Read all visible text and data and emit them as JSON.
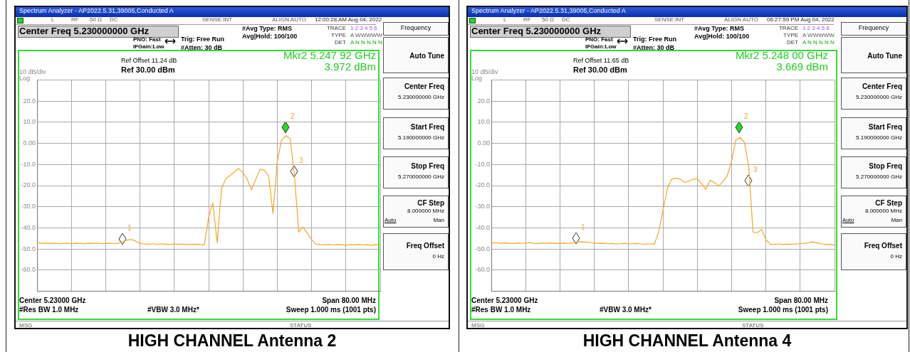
{
  "chart_data": [
    {
      "type": "line",
      "title": "HIGH CHANNEL Antenna 2",
      "ylim": [
        -70,
        30
      ],
      "grid": true,
      "tick_labels": "y",
      "marker": "none",
      "categories": [
        null,
        null,
        null,
        null,
        null,
        null,
        null,
        null,
        null,
        null,
        null,
        null,
        null,
        null,
        null,
        null,
        null,
        null,
        null,
        null,
        null,
        null,
        null,
        null,
        null,
        null,
        null,
        null,
        null,
        null,
        null,
        null,
        null,
        null,
        null,
        null,
        null,
        null,
        null,
        null,
        null,
        null,
        null,
        null,
        null,
        null,
        null,
        null,
        null,
        null,
        null,
        null,
        null,
        null,
        null,
        null,
        null,
        null,
        null,
        null,
        null,
        null,
        null,
        null,
        null,
        null,
        null,
        null,
        null,
        null,
        null,
        null,
        null,
        null,
        null,
        null,
        null,
        null,
        null,
        null,
        null
      ],
      "yticks": [
        {
          "value": 30,
          "label": null
        },
        {
          "value": 20,
          "label": "20.0"
        },
        {
          "value": 10,
          "label": "10.0"
        },
        {
          "value": 0,
          "label": "0.00"
        },
        {
          "value": -10,
          "label": "-10.0"
        },
        {
          "value": -20,
          "label": "-20.0"
        },
        {
          "value": -30,
          "label": "-30.0"
        },
        {
          "value": -40,
          "label": "-40.0"
        },
        {
          "value": -50,
          "label": "-50.0"
        },
        {
          "value": -60,
          "label": "-60.0"
        },
        {
          "value": -70,
          "label": null
        }
      ],
      "series": [
        {
          "color": "#f5a623",
          "values": [
            -47.1,
            -47.3,
            -47.2,
            -47.4,
            -47.3,
            -47.5,
            -47.4,
            -47.2,
            -47.5,
            -47.3,
            -47.4,
            -47.6,
            -47.3,
            -47.4,
            -47.2,
            -47.5,
            -47.4,
            -47.3,
            -47.5,
            -47.3,
            -46.5,
            -45.8,
            -45.5,
            -46.3,
            -47.3,
            -47.6,
            -47.7,
            -47.5,
            -47.8,
            -47.6,
            -47.7,
            -47.9,
            -47.6,
            -47.8,
            -47.7,
            -48.0,
            -47.8,
            -47.7,
            -47.9,
            -48.0,
            -35.0,
            -28.3,
            -47.1,
            -21.4,
            -16.8,
            -15.2,
            -13.5,
            -11.9,
            -13.8,
            -17.0,
            -21.9,
            -17.0,
            -12.3,
            -12.8,
            -15.5,
            -33.2,
            -8.5,
            1.5,
            3.6,
            2.3,
            -15.0,
            -42.0,
            -39.6,
            -42.5,
            -45.5,
            -47.7,
            -47.9,
            -48.0,
            -47.8,
            -48.1,
            -47.9,
            -48.0,
            -48.2,
            -47.9,
            -48.0,
            -47.8,
            -48.1,
            -48.0,
            -48.2,
            -47.9,
            -48.2
          ]
        }
      ],
      "annotations": [
        "Spectrum Analyzer - AP2022.5.31,39005,Conducted A",
        "L",
        "RF",
        "50 Ω",
        "DC",
        "SENSE:INT",
        "ALIGN AUTO",
        "12:00:28 AM Aug 04, 2022",
        "Center Freq 5.230000000 GHz",
        "PNO: Fast",
        "IFGain:Low",
        "Trig: Free Run",
        "#Atten: 30 dB",
        "#Avg Type: RMS",
        "Avg|Hold: 100/100",
        "TRACE",
        "1 2 3 4 5 6",
        "TYPE",
        "A WWWWW",
        "DET",
        "A N N N N N",
        "Ref Offset 11.24 dB",
        "Ref 30.00 dBm",
        "10 dB/div",
        "Log",
        "Mkr2 5.247 92 GHz",
        "3.972 dBm",
        "Center 5.23000 GHz",
        "Span 80.00 MHz",
        "#Res BW 1.0 MHz",
        "#VBW 3.0 MHz*",
        "Sweep  1.000 ms (1001 pts)",
        "MSG",
        "STATUS",
        "Frequency",
        "Auto Tune",
        "Center Freq",
        "5.230000000 GHz",
        "Start Freq",
        "5.190000000 GHz",
        "Stop Freq",
        "5.270000000 GHz",
        "CF Step",
        "8.000000 MHz",
        "Auto",
        "Man",
        "Freq Offset",
        "0 Hz",
        "1",
        "2",
        "3"
      ]
    },
    {
      "type": "line",
      "title": "HIGH CHANNEL Antenna 4",
      "ylim": [
        -70,
        30
      ],
      "grid": true,
      "tick_labels": "y",
      "marker": "none",
      "categories": [
        null,
        null,
        null,
        null,
        null,
        null,
        null,
        null,
        null,
        null,
        null,
        null,
        null,
        null,
        null,
        null,
        null,
        null,
        null,
        null,
        null,
        null,
        null,
        null,
        null,
        null,
        null,
        null,
        null,
        null,
        null,
        null,
        null,
        null,
        null,
        null,
        null,
        null,
        null,
        null,
        null,
        null,
        null,
        null,
        null,
        null,
        null,
        null,
        null,
        null,
        null,
        null,
        null,
        null,
        null,
        null,
        null,
        null,
        null,
        null,
        null,
        null,
        null,
        null,
        null,
        null,
        null,
        null,
        null,
        null,
        null,
        null,
        null,
        null,
        null,
        null,
        null,
        null,
        null,
        null,
        null
      ],
      "yticks": [
        {
          "value": 30,
          "label": null
        },
        {
          "value": 20,
          "label": "20.0"
        },
        {
          "value": 10,
          "label": "10.0"
        },
        {
          "value": 0,
          "label": "0.00"
        },
        {
          "value": -10,
          "label": "-10.0"
        },
        {
          "value": -20,
          "label": "-20.0"
        },
        {
          "value": -30,
          "label": "-30.0"
        },
        {
          "value": -40,
          "label": "-40.0"
        },
        {
          "value": -50,
          "label": "-50.0"
        },
        {
          "value": -60,
          "label": "-60.0"
        },
        {
          "value": -70,
          "label": null
        }
      ],
      "series": [
        {
          "color": "#f5a623",
          "values": [
            -47.2,
            -47.0,
            -47.3,
            -47.1,
            -47.2,
            -47.4,
            -47.1,
            -47.3,
            -47.2,
            -47.0,
            -47.3,
            -47.4,
            -47.2,
            -47.3,
            -47.1,
            -47.4,
            -47.3,
            -47.2,
            -47.4,
            -47.1,
            -46.8,
            -46.6,
            -46.7,
            -47.0,
            -47.2,
            -47.4,
            -47.3,
            -47.5,
            -47.4,
            -47.6,
            -47.5,
            -47.3,
            -47.6,
            -47.5,
            -47.4,
            -47.6,
            -47.7,
            -47.5,
            -47.7,
            -42.0,
            -32.0,
            -21.5,
            -17.0,
            -16.5,
            -16.9,
            -18.5,
            -18.0,
            -17.0,
            -16.8,
            -19.0,
            -21.8,
            -17.5,
            -18.5,
            -20.2,
            -18.0,
            -15.3,
            -8.5,
            1.5,
            2.8,
            0.5,
            -11.0,
            -42.0,
            -42.3,
            -40.7,
            -45.5,
            -47.7,
            -47.8,
            -47.6,
            -47.9,
            -47.7,
            -47.8,
            -47.6,
            -47.5,
            -47.3,
            -47.0,
            -46.6,
            -47.2,
            -47.6,
            -47.8,
            -47.7,
            -48.2
          ]
        }
      ],
      "annotations": [
        "Spectrum Analyzer - AP2022.5.31,39005,Conducted A",
        "L",
        "RF",
        "50 Ω",
        "DC",
        "SENSE:INT",
        "ALIGN AUTO",
        "06:27:59 PM Aug 04, 2022",
        "Center Freq 5.230000000 GHz",
        "PNO: Fast",
        "IFGain:Low",
        "Trig: Free Run",
        "#Atten: 30 dB",
        "#Avg Type: RMS",
        "Avg|Hold: 100/100",
        "TRACE",
        "1 2 3 4 5 6",
        "TYPE",
        "A WWWWW",
        "DET",
        "A N N N N N",
        "Ref Offset 11.65 dB",
        "Ref 30.00 dBm",
        "10 dB/div",
        "Log",
        "Mkr2 5.248 00 GHz",
        "3.669 dBm",
        "Center 5.23000 GHz",
        "Span 80.00 MHz",
        "#Res BW 1.0 MHz",
        "#VBW 3.0 MHz*",
        "Sweep  1.000 ms (1001 pts)",
        "MSG",
        "STATUS",
        "Frequency",
        "Auto Tune",
        "Center Freq",
        "5.230000000 GHz",
        "Start Freq",
        "5.190000000 GHz",
        "Stop Freq",
        "5.270000000 GHz",
        "CF Step",
        "8.000000 MHz",
        "Auto",
        "Man",
        "Freq Offset",
        "0 Hz",
        "1",
        "2",
        "3"
      ]
    }
  ]
}
